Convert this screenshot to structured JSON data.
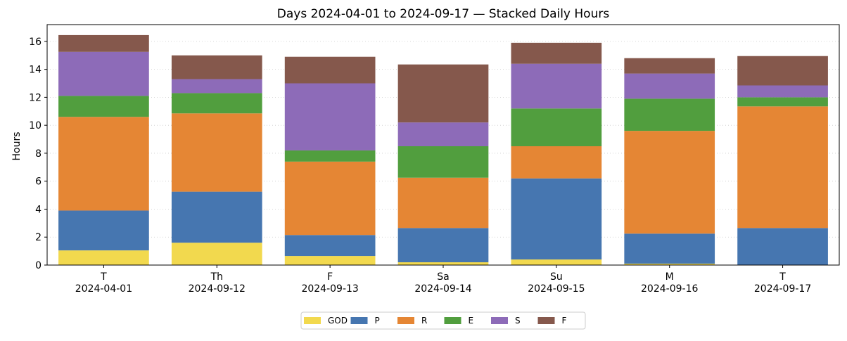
{
  "chart_data": {
    "type": "bar",
    "stacked": true,
    "title": "Days 2024-04-01 to 2024-09-17 — Stacked Daily Hours",
    "xlabel": "",
    "ylabel": "Hours",
    "ylim": [
      0,
      17.2
    ],
    "yticks": [
      0,
      2,
      4,
      6,
      8,
      10,
      12,
      14,
      16
    ],
    "grid": "horizontal dotted",
    "legend_placement": "bottom-center",
    "categories": [
      {
        "day": "T",
        "date": "2024-04-01"
      },
      {
        "day": "Th",
        "date": "2024-09-12"
      },
      {
        "day": "F",
        "date": "2024-09-13"
      },
      {
        "day": "Sa",
        "date": "2024-09-14"
      },
      {
        "day": "Su",
        "date": "2024-09-15"
      },
      {
        "day": "M",
        "date": "2024-09-16"
      },
      {
        "day": "T",
        "date": "2024-09-17"
      }
    ],
    "series": [
      {
        "name": "GOD",
        "color": "#f2d94e",
        "values": [
          1.05,
          1.6,
          0.65,
          0.2,
          0.4,
          0.1,
          0.0
        ]
      },
      {
        "name": "P",
        "color": "#4676b0",
        "values": [
          2.85,
          3.65,
          1.5,
          2.45,
          5.8,
          2.15,
          2.65
        ]
      },
      {
        "name": "R",
        "color": "#e58634",
        "values": [
          6.7,
          5.6,
          5.25,
          3.6,
          2.3,
          7.35,
          8.7
        ]
      },
      {
        "name": "E",
        "color": "#519e3e",
        "values": [
          1.5,
          1.45,
          0.8,
          2.25,
          2.7,
          2.3,
          0.65
        ]
      },
      {
        "name": "S",
        "color": "#8d6bb8",
        "values": [
          3.15,
          1.0,
          4.8,
          1.7,
          3.2,
          1.8,
          0.85
        ]
      },
      {
        "name": "F",
        "color": "#85584c",
        "values": [
          1.2,
          1.7,
          1.9,
          4.15,
          1.5,
          1.1,
          2.1
        ]
      }
    ]
  }
}
